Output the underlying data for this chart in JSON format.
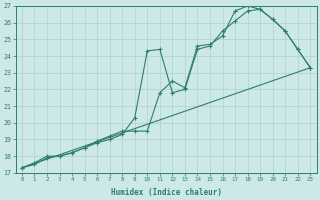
{
  "xlabel": "Humidex (Indice chaleur)",
  "bg_color": "#cce8e8",
  "line_color": "#2e7d6e",
  "grid_color": "#b0d0cc",
  "xlim": [
    -0.5,
    23.5
  ],
  "ylim": [
    17,
    27
  ],
  "xticks": [
    0,
    1,
    2,
    3,
    4,
    5,
    6,
    7,
    8,
    9,
    10,
    11,
    12,
    13,
    14,
    15,
    16,
    17,
    18,
    19,
    20,
    21,
    22,
    23
  ],
  "yticks": [
    17,
    18,
    19,
    20,
    21,
    22,
    23,
    24,
    25,
    26,
    27
  ],
  "line1_x": [
    0,
    1,
    2,
    3,
    4,
    5,
    6,
    7,
    8,
    9,
    10,
    11,
    12,
    13,
    14,
    15,
    16,
    17,
    18,
    19,
    20,
    21,
    22,
    23
  ],
  "line1_y": [
    17.3,
    17.5,
    17.9,
    18.0,
    18.2,
    18.5,
    18.8,
    19.0,
    19.3,
    20.3,
    24.3,
    24.4,
    21.8,
    22.0,
    24.4,
    24.6,
    25.5,
    26.1,
    26.7,
    26.8,
    26.2,
    25.5,
    24.4,
    23.3
  ],
  "line2_x": [
    0,
    1,
    2,
    3,
    4,
    5,
    6,
    7,
    8,
    9,
    10,
    11,
    12,
    13,
    14,
    15,
    16,
    17,
    18,
    19,
    20,
    21,
    22,
    23
  ],
  "line2_y": [
    17.3,
    17.6,
    18.0,
    18.0,
    18.2,
    18.5,
    18.9,
    19.2,
    19.5,
    19.5,
    19.5,
    21.8,
    22.5,
    22.1,
    24.6,
    24.7,
    25.2,
    26.7,
    27.0,
    26.8,
    26.2,
    25.5,
    24.4,
    23.3
  ],
  "line3_x": [
    0,
    23
  ],
  "line3_y": [
    17.3,
    23.3
  ]
}
